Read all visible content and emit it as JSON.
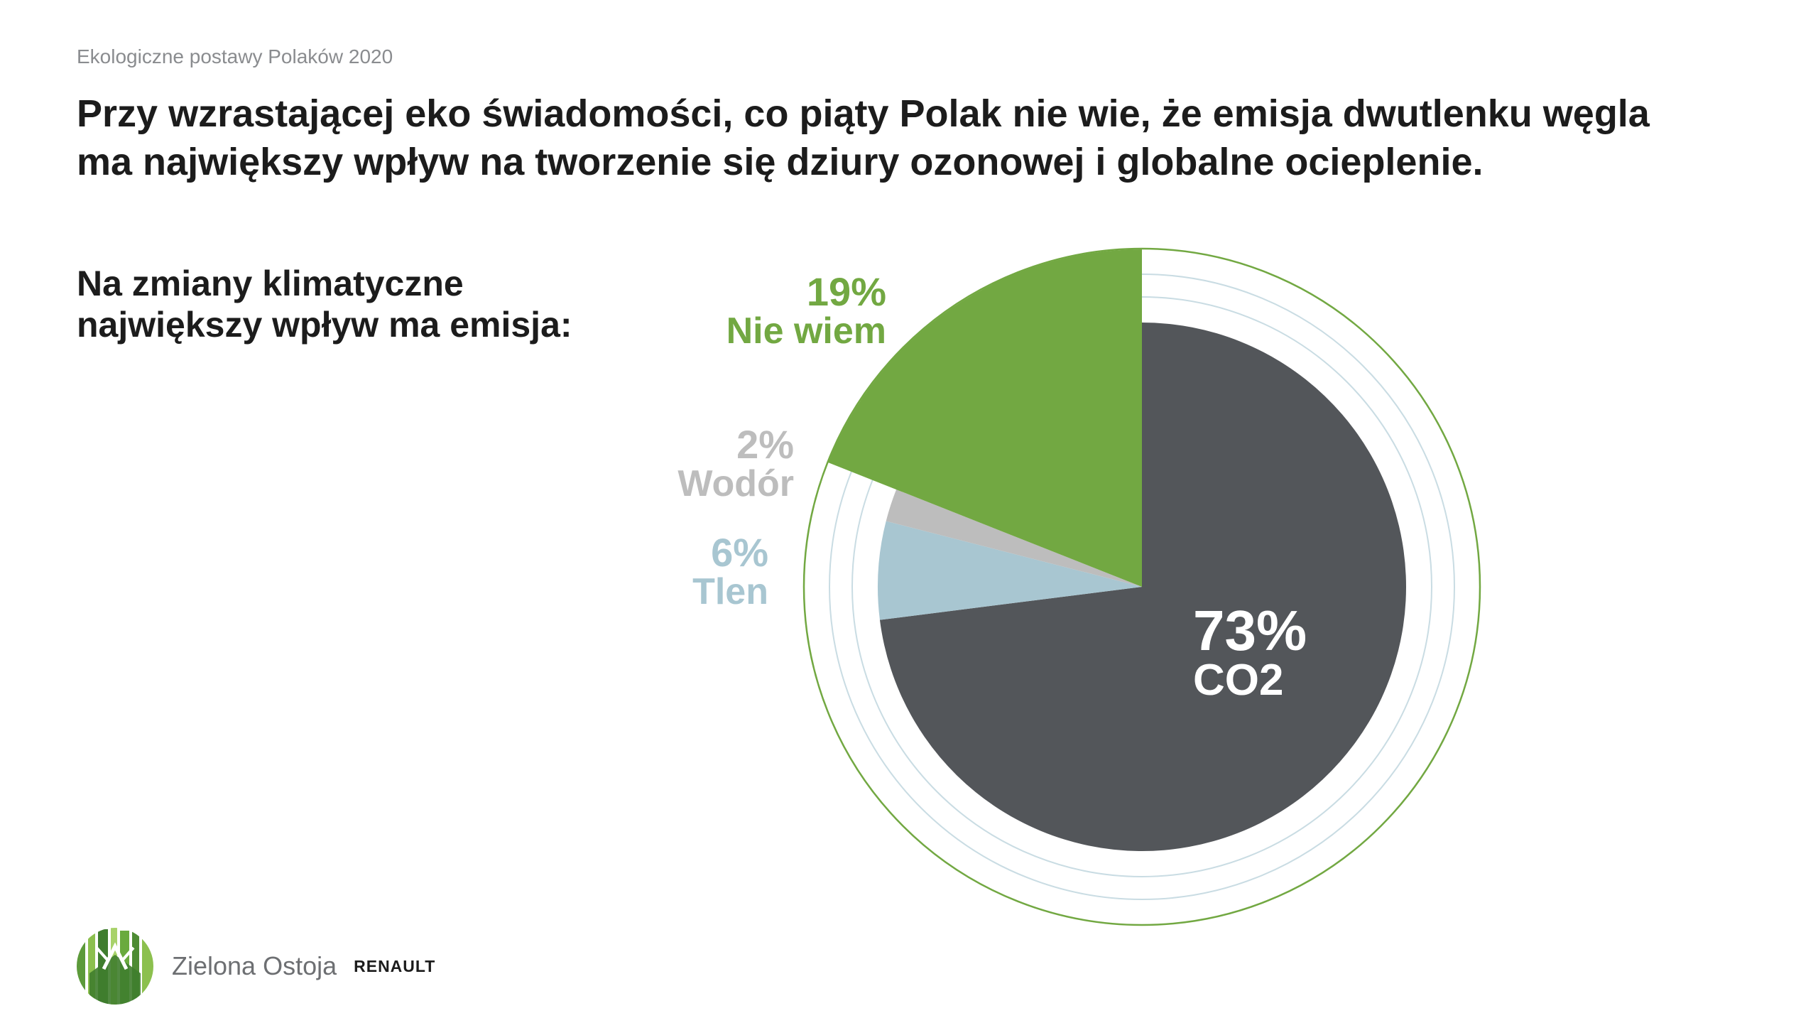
{
  "header": {
    "supertitle": "Ekologiczne postawy Polaków 2020",
    "headline_line1": "Przy wzrastającej eko świadomości, co piąty Polak nie wie, że emisja dwutlenku węgla",
    "headline_line2": "ma największy wpływ na tworzenie się dziury ozonowej i globalne ocieplenie."
  },
  "question": {
    "line1": "Na zmiany klimatyczne",
    "line2": "największy wpływ ma emisja:"
  },
  "chart_data": {
    "type": "pie",
    "title": "",
    "legend": "none (labels placed next to slices)",
    "start_angle": "12 o'clock, clockwise",
    "slices": [
      {
        "label": "CO2",
        "value": 73,
        "value_label": "73%",
        "color": "#53565a",
        "label_color": "#ffffff"
      },
      {
        "label": "Tlen",
        "value": 6,
        "value_label": "6%",
        "color": "#a8c6d1",
        "label_color": "#a8c6d1"
      },
      {
        "label": "Wodór",
        "value": 2,
        "value_label": "2%",
        "color": "#bdbdbd",
        "label_color": "#bdbdbd"
      },
      {
        "label": "Nie wiem",
        "value": 19,
        "value_label": "19%",
        "color": "#72a842",
        "label_color": "#72a842"
      }
    ],
    "decorative_rings_colors": [
      "#c9dce3",
      "#c9dce3",
      "#72a842"
    ]
  },
  "footer": {
    "brand": "Zielona Ostoja",
    "partner": "RENAULT",
    "logo_icon": "forest-logo-icon"
  },
  "colors": {
    "text_dark": "#1c1c1c",
    "text_gray": "#8a8c8f",
    "accent_green": "#72a842"
  }
}
